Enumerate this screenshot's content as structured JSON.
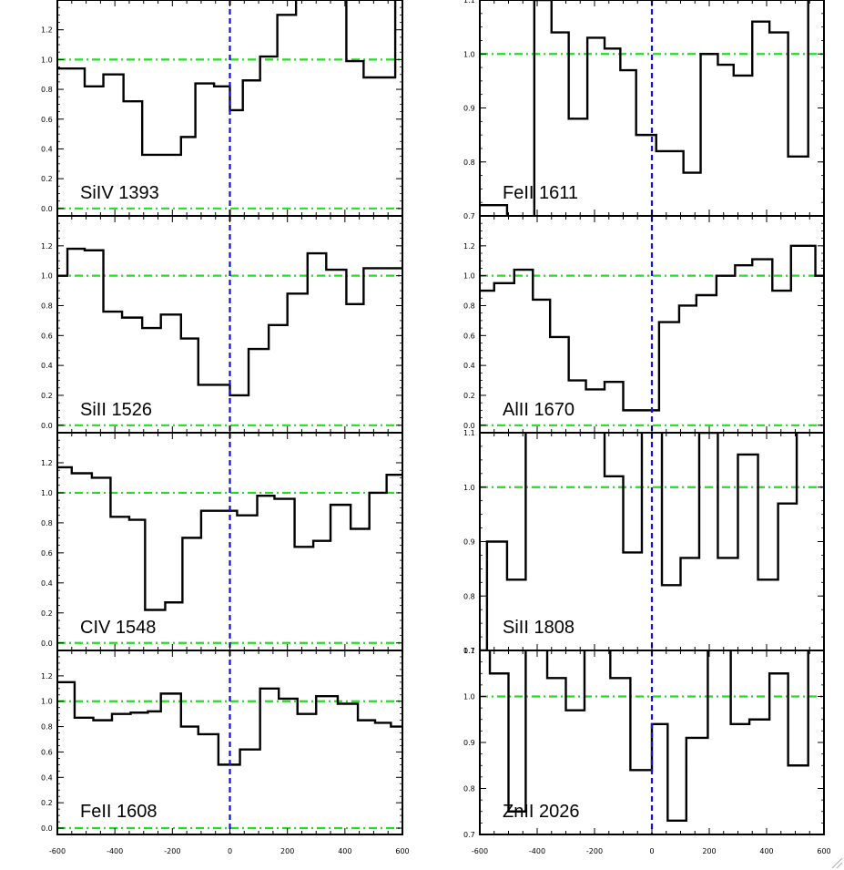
{
  "chart_data": [
    {
      "type": "line",
      "label": "SiIV 1393",
      "ylim": [
        -0.05,
        1.4
      ],
      "yticks": [
        "0.0",
        "0.2",
        "0.4",
        "0.6",
        "0.8",
        "1.0",
        "1.2"
      ],
      "steps": [
        [
          -620,
          1.19
        ],
        [
          -605,
          0.94
        ],
        [
          -540,
          0.94
        ],
        [
          -505,
          0.82
        ],
        [
          -440,
          0.9
        ],
        [
          -370,
          0.72
        ],
        [
          -305,
          0.36
        ],
        [
          -240,
          0.36
        ],
        [
          -170,
          0.48
        ],
        [
          -120,
          0.84
        ],
        [
          -55,
          0.82
        ],
        [
          0,
          0.66
        ],
        [
          45,
          0.86
        ],
        [
          105,
          1.02
        ],
        [
          165,
          1.3
        ],
        [
          230,
          1.5
        ],
        [
          345,
          1.5
        ],
        [
          405,
          0.99
        ],
        [
          465,
          0.88
        ],
        [
          545,
          0.88
        ],
        [
          575,
          1.5
        ],
        [
          620,
          1.5
        ]
      ]
    },
    {
      "type": "line",
      "label": "FeII 1611",
      "ylim": [
        0.7,
        1.1
      ],
      "yticks": [
        "0.7",
        "0.8",
        "0.9",
        "1.0",
        "1.1"
      ],
      "steps": [
        [
          -620,
          0.7
        ],
        [
          -605,
          0.72
        ],
        [
          -555,
          0.72
        ],
        [
          -505,
          0.68
        ],
        [
          -410,
          1.1
        ],
        [
          -350,
          1.04
        ],
        [
          -290,
          0.88
        ],
        [
          -225,
          1.03
        ],
        [
          -165,
          1.01
        ],
        [
          -110,
          0.97
        ],
        [
          -55,
          0.85
        ],
        [
          0,
          0.85
        ],
        [
          15,
          0.82
        ],
        [
          65,
          0.82
        ],
        [
          110,
          0.78
        ],
        [
          170,
          1.0
        ],
        [
          230,
          0.98
        ],
        [
          285,
          0.96
        ],
        [
          350,
          1.06
        ],
        [
          410,
          1.04
        ],
        [
          475,
          0.81
        ],
        [
          545,
          1.12
        ],
        [
          620,
          1.12
        ]
      ]
    },
    {
      "type": "line",
      "label": "SiII 1526",
      "ylim": [
        -0.05,
        1.4
      ],
      "yticks": [
        "0.0",
        "0.2",
        "0.4",
        "0.6",
        "0.8",
        "1.0",
        "1.2"
      ],
      "steps": [
        [
          -620,
          1.0
        ],
        [
          -605,
          1.0
        ],
        [
          -565,
          1.18
        ],
        [
          -505,
          1.17
        ],
        [
          -440,
          0.76
        ],
        [
          -375,
          0.72
        ],
        [
          -305,
          0.65
        ],
        [
          -240,
          0.74
        ],
        [
          -170,
          0.58
        ],
        [
          -110,
          0.27
        ],
        [
          -55,
          0.27
        ],
        [
          0,
          0.2
        ],
        [
          65,
          0.51
        ],
        [
          135,
          0.67
        ],
        [
          200,
          0.88
        ],
        [
          270,
          1.15
        ],
        [
          335,
          1.04
        ],
        [
          405,
          0.81
        ],
        [
          465,
          1.05
        ],
        [
          620,
          1.05
        ]
      ]
    },
    {
      "type": "line",
      "label": "AlII 1670",
      "ylim": [
        -0.05,
        1.4
      ],
      "yticks": [
        "0.0",
        "0.2",
        "0.4",
        "0.6",
        "0.8",
        "1.0",
        "1.2"
      ],
      "steps": [
        [
          -620,
          0.9
        ],
        [
          -605,
          0.9
        ],
        [
          -550,
          0.95
        ],
        [
          -480,
          1.04
        ],
        [
          -415,
          0.84
        ],
        [
          -355,
          0.59
        ],
        [
          -290,
          0.3
        ],
        [
          -230,
          0.24
        ],
        [
          -165,
          0.29
        ],
        [
          -100,
          0.1
        ],
        [
          -55,
          0.1
        ],
        [
          0,
          0.1
        ],
        [
          25,
          0.69
        ],
        [
          95,
          0.8
        ],
        [
          155,
          0.87
        ],
        [
          225,
          1.0
        ],
        [
          290,
          1.07
        ],
        [
          350,
          1.11
        ],
        [
          420,
          0.9
        ],
        [
          485,
          1.2
        ],
        [
          545,
          1.2
        ],
        [
          570,
          1.0
        ],
        [
          620,
          1.0
        ]
      ]
    },
    {
      "type": "line",
      "label": "CIV 1548",
      "ylim": [
        -0.05,
        1.4
      ],
      "yticks": [
        "0.0",
        "0.2",
        "0.4",
        "0.6",
        "0.8",
        "1.0",
        "1.2"
      ],
      "steps": [
        [
          -620,
          1.17
        ],
        [
          -605,
          1.17
        ],
        [
          -550,
          1.13
        ],
        [
          -480,
          1.1
        ],
        [
          -415,
          0.84
        ],
        [
          -350,
          0.82
        ],
        [
          -295,
          0.22
        ],
        [
          -225,
          0.27
        ],
        [
          -165,
          0.7
        ],
        [
          -100,
          0.88
        ],
        [
          -55,
          0.88
        ],
        [
          0,
          0.88
        ],
        [
          25,
          0.85
        ],
        [
          95,
          0.98
        ],
        [
          155,
          0.96
        ],
        [
          225,
          0.64
        ],
        [
          290,
          0.68
        ],
        [
          350,
          0.92
        ],
        [
          420,
          0.76
        ],
        [
          485,
          1.0
        ],
        [
          545,
          1.12
        ],
        [
          620,
          1.12
        ]
      ]
    },
    {
      "type": "line",
      "label": "SiII 1808",
      "ylim": [
        0.7,
        1.1
      ],
      "yticks": [
        "0.7",
        "0.8",
        "0.9",
        "1.0",
        "1.1"
      ],
      "steps": [
        [
          -620,
          0.7
        ],
        [
          -605,
          0.7
        ],
        [
          -575,
          0.9
        ],
        [
          -505,
          0.83
        ],
        [
          -440,
          1.12
        ],
        [
          -410,
          1.12
        ],
        [
          -165,
          1.12
        ],
        [
          -165,
          1.02
        ],
        [
          -100,
          0.88
        ],
        [
          -35,
          1.12
        ],
        [
          35,
          0.82
        ],
        [
          100,
          0.87
        ],
        [
          165,
          1.1
        ],
        [
          230,
          0.87
        ],
        [
          300,
          1.06
        ],
        [
          370,
          0.83
        ],
        [
          440,
          0.97
        ],
        [
          505,
          1.12
        ],
        [
          620,
          1.12
        ]
      ]
    },
    {
      "type": "line",
      "label": "FeII 1608",
      "ylim": [
        -0.05,
        1.4
      ],
      "yticks": [
        "0.0",
        "0.2",
        "0.4",
        "0.6",
        "0.8",
        "1.0",
        "1.2"
      ],
      "steps": [
        [
          -620,
          1.15
        ],
        [
          -605,
          1.15
        ],
        [
          -540,
          0.87
        ],
        [
          -475,
          0.85
        ],
        [
          -410,
          0.9
        ],
        [
          -345,
          0.91
        ],
        [
          -285,
          0.92
        ],
        [
          -240,
          1.06
        ],
        [
          -170,
          0.8
        ],
        [
          -110,
          0.74
        ],
        [
          -40,
          0.5
        ],
        [
          0,
          0.5
        ],
        [
          35,
          0.62
        ],
        [
          105,
          1.1
        ],
        [
          170,
          1.02
        ],
        [
          235,
          0.9
        ],
        [
          300,
          1.04
        ],
        [
          375,
          0.98
        ],
        [
          445,
          0.85
        ],
        [
          505,
          0.83
        ],
        [
          560,
          0.8
        ],
        [
          620,
          0.8
        ]
      ]
    },
    {
      "type": "line",
      "label": "ZnII 2026",
      "ylim": [
        0.7,
        1.1
      ],
      "yticks": [
        "0.7",
        "0.8",
        "0.9",
        "1.0",
        "1.1"
      ],
      "steps": [
        [
          -620,
          1.12
        ],
        [
          -605,
          1.12
        ],
        [
          -565,
          1.05
        ],
        [
          -500,
          0.75
        ],
        [
          -440,
          1.12
        ],
        [
          -380,
          1.12
        ],
        [
          -365,
          1.04
        ],
        [
          -300,
          0.97
        ],
        [
          -235,
          1.12
        ],
        [
          -175,
          1.12
        ],
        [
          -145,
          1.04
        ],
        [
          -75,
          0.84
        ],
        [
          0,
          0.94
        ],
        [
          55,
          0.73
        ],
        [
          120,
          0.91
        ],
        [
          195,
          1.12
        ],
        [
          265,
          1.12
        ],
        [
          275,
          0.94
        ],
        [
          340,
          0.95
        ],
        [
          410,
          1.05
        ],
        [
          475,
          0.85
        ],
        [
          545,
          1.12
        ],
        [
          620,
          1.12
        ]
      ]
    }
  ],
  "xaxis": {
    "xlim": [
      -600,
      600
    ],
    "ticks": [
      "-600",
      "-400",
      "-200",
      "0",
      "200",
      "400",
      "600"
    ]
  },
  "colors": {
    "continuum": "#22dd22",
    "zero_line": "#1111dd",
    "spectrum": "#000000"
  }
}
